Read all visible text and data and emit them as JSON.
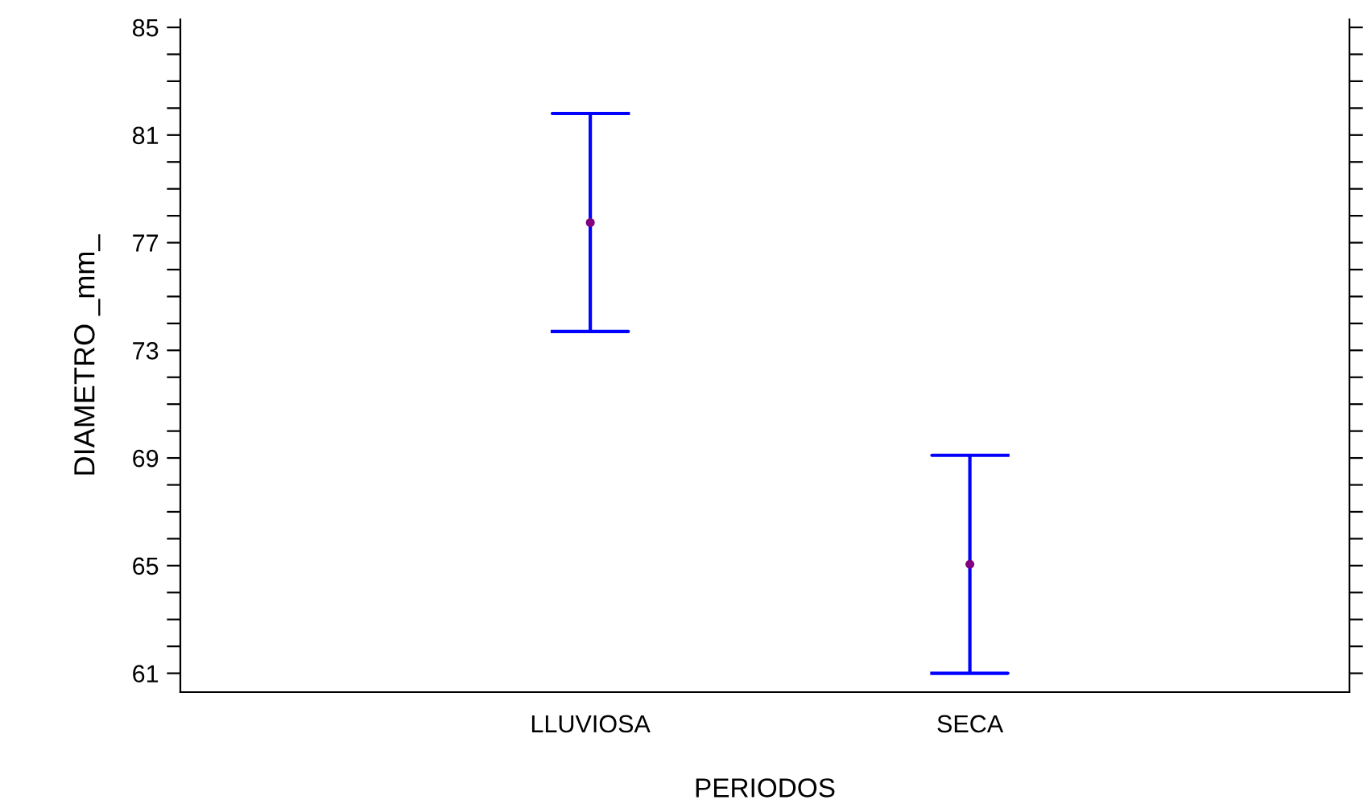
{
  "chart_data": {
    "type": "scatter",
    "xlabel": "PERIODOS",
    "ylabel": "DIAMETRO _mm_",
    "categories": [
      "LLUVIOSA",
      "SECA"
    ],
    "series": [
      {
        "color": "#800080",
        "values": [
          77.75,
          65.05
        ],
        "errors": [
          4.05,
          4.05
        ]
      }
    ],
    "ylim": [
      60.3,
      85.3
    ],
    "yticks": [
      61,
      {
        "value": 62,
        "label": null
      },
      {
        "value": 63,
        "label": null
      },
      {
        "value": 64,
        "label": null
      },
      65,
      {
        "value": 66,
        "label": null
      },
      {
        "value": 67,
        "label": null
      },
      {
        "value": 68,
        "label": null
      },
      69,
      {
        "value": 70,
        "label": null
      },
      {
        "value": 71,
        "label": null
      },
      {
        "value": 72,
        "label": null
      },
      73,
      {
        "value": 74,
        "label": null
      },
      {
        "value": 75,
        "label": null
      },
      {
        "value": 76,
        "label": null
      },
      77,
      {
        "value": 78,
        "label": null
      },
      {
        "value": 79,
        "label": null
      },
      {
        "value": 80,
        "label": null
      },
      81,
      {
        "value": 82,
        "label": null
      },
      {
        "value": 83,
        "label": null
      },
      {
        "value": 84,
        "label": null
      },
      85
    ],
    "marker": "circle",
    "grid": false,
    "legend": false
  }
}
